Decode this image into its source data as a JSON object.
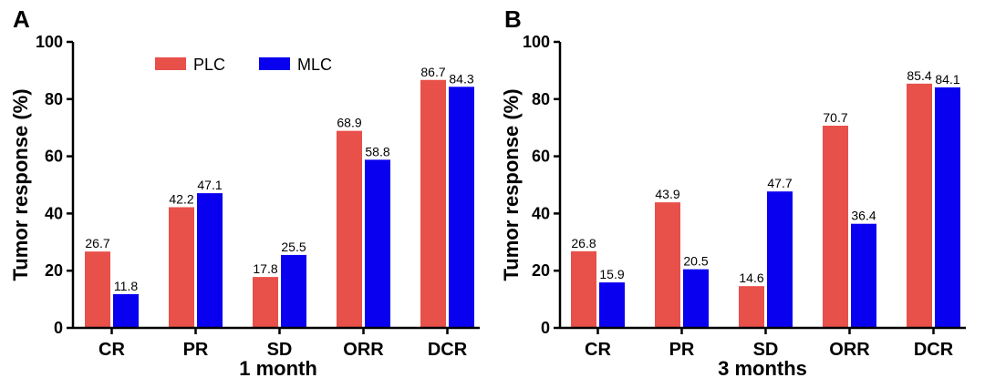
{
  "chart_data": [
    {
      "panel": "A",
      "type": "bar",
      "categories": [
        "CR",
        "PR",
        "SD",
        "ORR",
        "DCR"
      ],
      "series": [
        {
          "name": "PLC",
          "values": [
            26.7,
            42.2,
            17.8,
            68.9,
            86.7
          ],
          "color": "#e8504a"
        },
        {
          "name": "MLC",
          "values": [
            11.8,
            47.1,
            25.5,
            58.8,
            84.3
          ],
          "color": "#0a00f0"
        }
      ],
      "data_labels": [
        [
          "26.7",
          "42.2",
          "17.8",
          "68.9",
          "86.7"
        ],
        [
          "11.8",
          "47.1",
          "25.5",
          "58.8",
          "84.3"
        ]
      ],
      "xlabel": "1 month",
      "ylabel": "Tumor response (%)",
      "ylim": [
        0,
        100
      ],
      "yticks": [
        "0",
        "20",
        "40",
        "60",
        "80",
        "100"
      ],
      "legend": "top-left",
      "grid": false
    },
    {
      "panel": "B",
      "type": "bar",
      "categories": [
        "CR",
        "PR",
        "SD",
        "ORR",
        "DCR"
      ],
      "series": [
        {
          "name": "PLC",
          "values": [
            26.8,
            43.9,
            14.6,
            70.7,
            85.4
          ],
          "color": "#e8504a"
        },
        {
          "name": "MLC",
          "values": [
            15.9,
            20.5,
            47.7,
            36.4,
            84.1
          ],
          "color": "#0a00f0"
        }
      ],
      "data_labels": [
        [
          "26.8",
          "43.9",
          "14.6",
          "70.7",
          "85.4"
        ],
        [
          "15.9",
          "20.5",
          "47.7",
          "36.4",
          "84.1"
        ]
      ],
      "xlabel": "3 months",
      "ylabel": "Tumor response (%)",
      "ylim": [
        0,
        100
      ],
      "yticks": [
        "0",
        "20",
        "40",
        "60",
        "80",
        "100"
      ],
      "legend": "none",
      "grid": false
    }
  ]
}
